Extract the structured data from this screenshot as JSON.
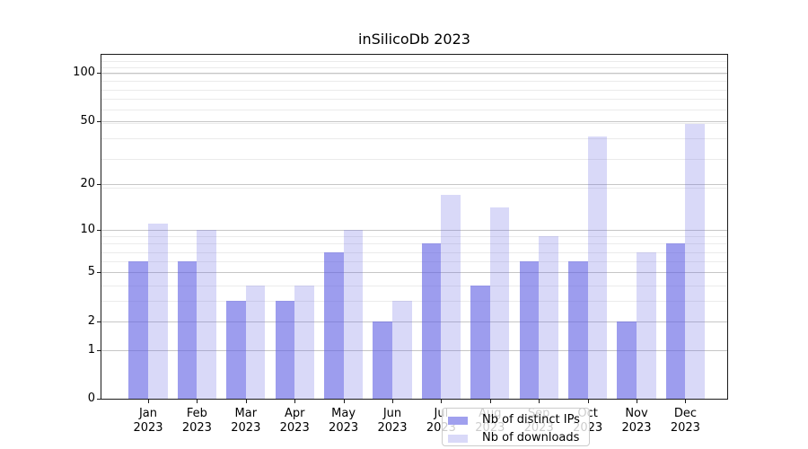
{
  "chart_data": {
    "type": "bar",
    "title": "inSilicoDb 2023",
    "categories": [
      "Jan",
      "Feb",
      "Mar",
      "Apr",
      "May",
      "Jun",
      "Jul",
      "Aug",
      "Sep",
      "Oct",
      "Nov",
      "Dec"
    ],
    "year_label": "2023",
    "series": [
      {
        "name": "Nb of distinct IPs",
        "color": "#a0a0ee",
        "css_color": "rgba(97,97,227,0.62)",
        "values": [
          6,
          6,
          3,
          3,
          7,
          2,
          8,
          4,
          6,
          6,
          2,
          8
        ]
      },
      {
        "name": "Nb of downloads",
        "color": "#d9d9f8",
        "css_color": "rgba(103,103,227,0.25)",
        "values": [
          11,
          10,
          4,
          4,
          10,
          3,
          17,
          14,
          9,
          40,
          7,
          48
        ]
      }
    ],
    "yscale": "log10(1+x)",
    "ylim": [
      0,
      128
    ],
    "ytick_values": [
      0,
      1,
      2,
      5,
      10,
      20,
      50,
      100
    ],
    "ytick_labels": [
      "0",
      "1",
      "2",
      "5",
      "10",
      "20",
      "50",
      "100"
    ],
    "major_grid_values": [
      1,
      2,
      5,
      10,
      20,
      50,
      100
    ],
    "minor_grid_values": [
      3,
      4,
      6,
      7,
      8,
      9,
      19,
      29,
      39,
      49,
      59,
      69,
      79,
      89,
      99,
      109,
      119
    ],
    "grid": true,
    "legend_position": "inside-bottom-center"
  },
  "colors": {
    "major_grid": "#c6c6c6",
    "minor_grid": "#ebebeb",
    "spine": "#1a1a1a",
    "legend_border": "#cccccc",
    "legend_bg": "rgba(255,255,255,0.8)",
    "text": "#000000"
  }
}
